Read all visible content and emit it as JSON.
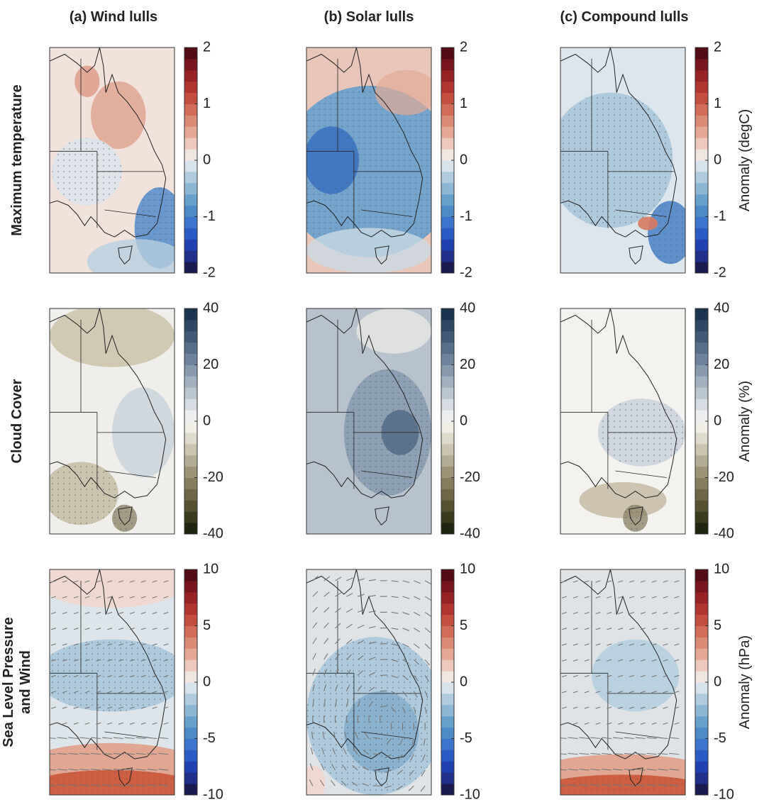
{
  "columns": [
    "(a) Wind lulls",
    "(b) Solar lulls",
    "(c) Compound lulls"
  ],
  "rows": [
    {
      "label": [
        "Maximum temperature"
      ],
      "colorbar_label": "Anomaly (degC)",
      "clim": [
        -2,
        2
      ],
      "ticks": [
        -2,
        -1,
        0,
        1,
        2
      ],
      "colors": [
        "#1a1a4e",
        "#1f2f8a",
        "#2140b0",
        "#2a5bc4",
        "#3a74cc",
        "#4c8ac8",
        "#68a0cc",
        "#8cb6d4",
        "#b0cade",
        "#d8e2ea",
        "#f0e6e2",
        "#eec8bc",
        "#e4a894",
        "#da8a74",
        "#d06c58",
        "#c44e40",
        "#b03430",
        "#962226",
        "#78141e",
        "#520a14"
      ]
    },
    {
      "label": [
        "Cloud Cover"
      ],
      "colorbar_label": "Anomaly (%)",
      "clim": [
        -40,
        40
      ],
      "ticks": [
        -40,
        -20,
        0,
        20,
        40
      ],
      "colors": [
        "#1d2510",
        "#3a3a1c",
        "#555030",
        "#6e6646",
        "#867d5e",
        "#9d9478",
        "#b3ac94",
        "#c9c3b0",
        "#dedacc",
        "#f2efe8",
        "#eceeef",
        "#d6dce2",
        "#bcc6d0",
        "#a2b0bf",
        "#8899ad",
        "#6f849c",
        "#586f89",
        "#425a76",
        "#2e4762",
        "#1a3450"
      ]
    },
    {
      "label": [
        "Sea Level Pressure",
        "and Wind"
      ],
      "colorbar_label": "Anomaly (hPa)",
      "clim": [
        -10,
        10
      ],
      "ticks": [
        -10,
        -5,
        0,
        5,
        10
      ],
      "colors": [
        "#1a1a4e",
        "#1f2f8a",
        "#2140b0",
        "#2a5bc4",
        "#3a74cc",
        "#4c8ac8",
        "#68a0cc",
        "#8cb6d4",
        "#b0cade",
        "#d8e2ea",
        "#f0e6e2",
        "#eec8bc",
        "#e4a894",
        "#da8a74",
        "#d06c58",
        "#c44e40",
        "#b03430",
        "#962226",
        "#78141e",
        "#520a14"
      ]
    }
  ]
}
